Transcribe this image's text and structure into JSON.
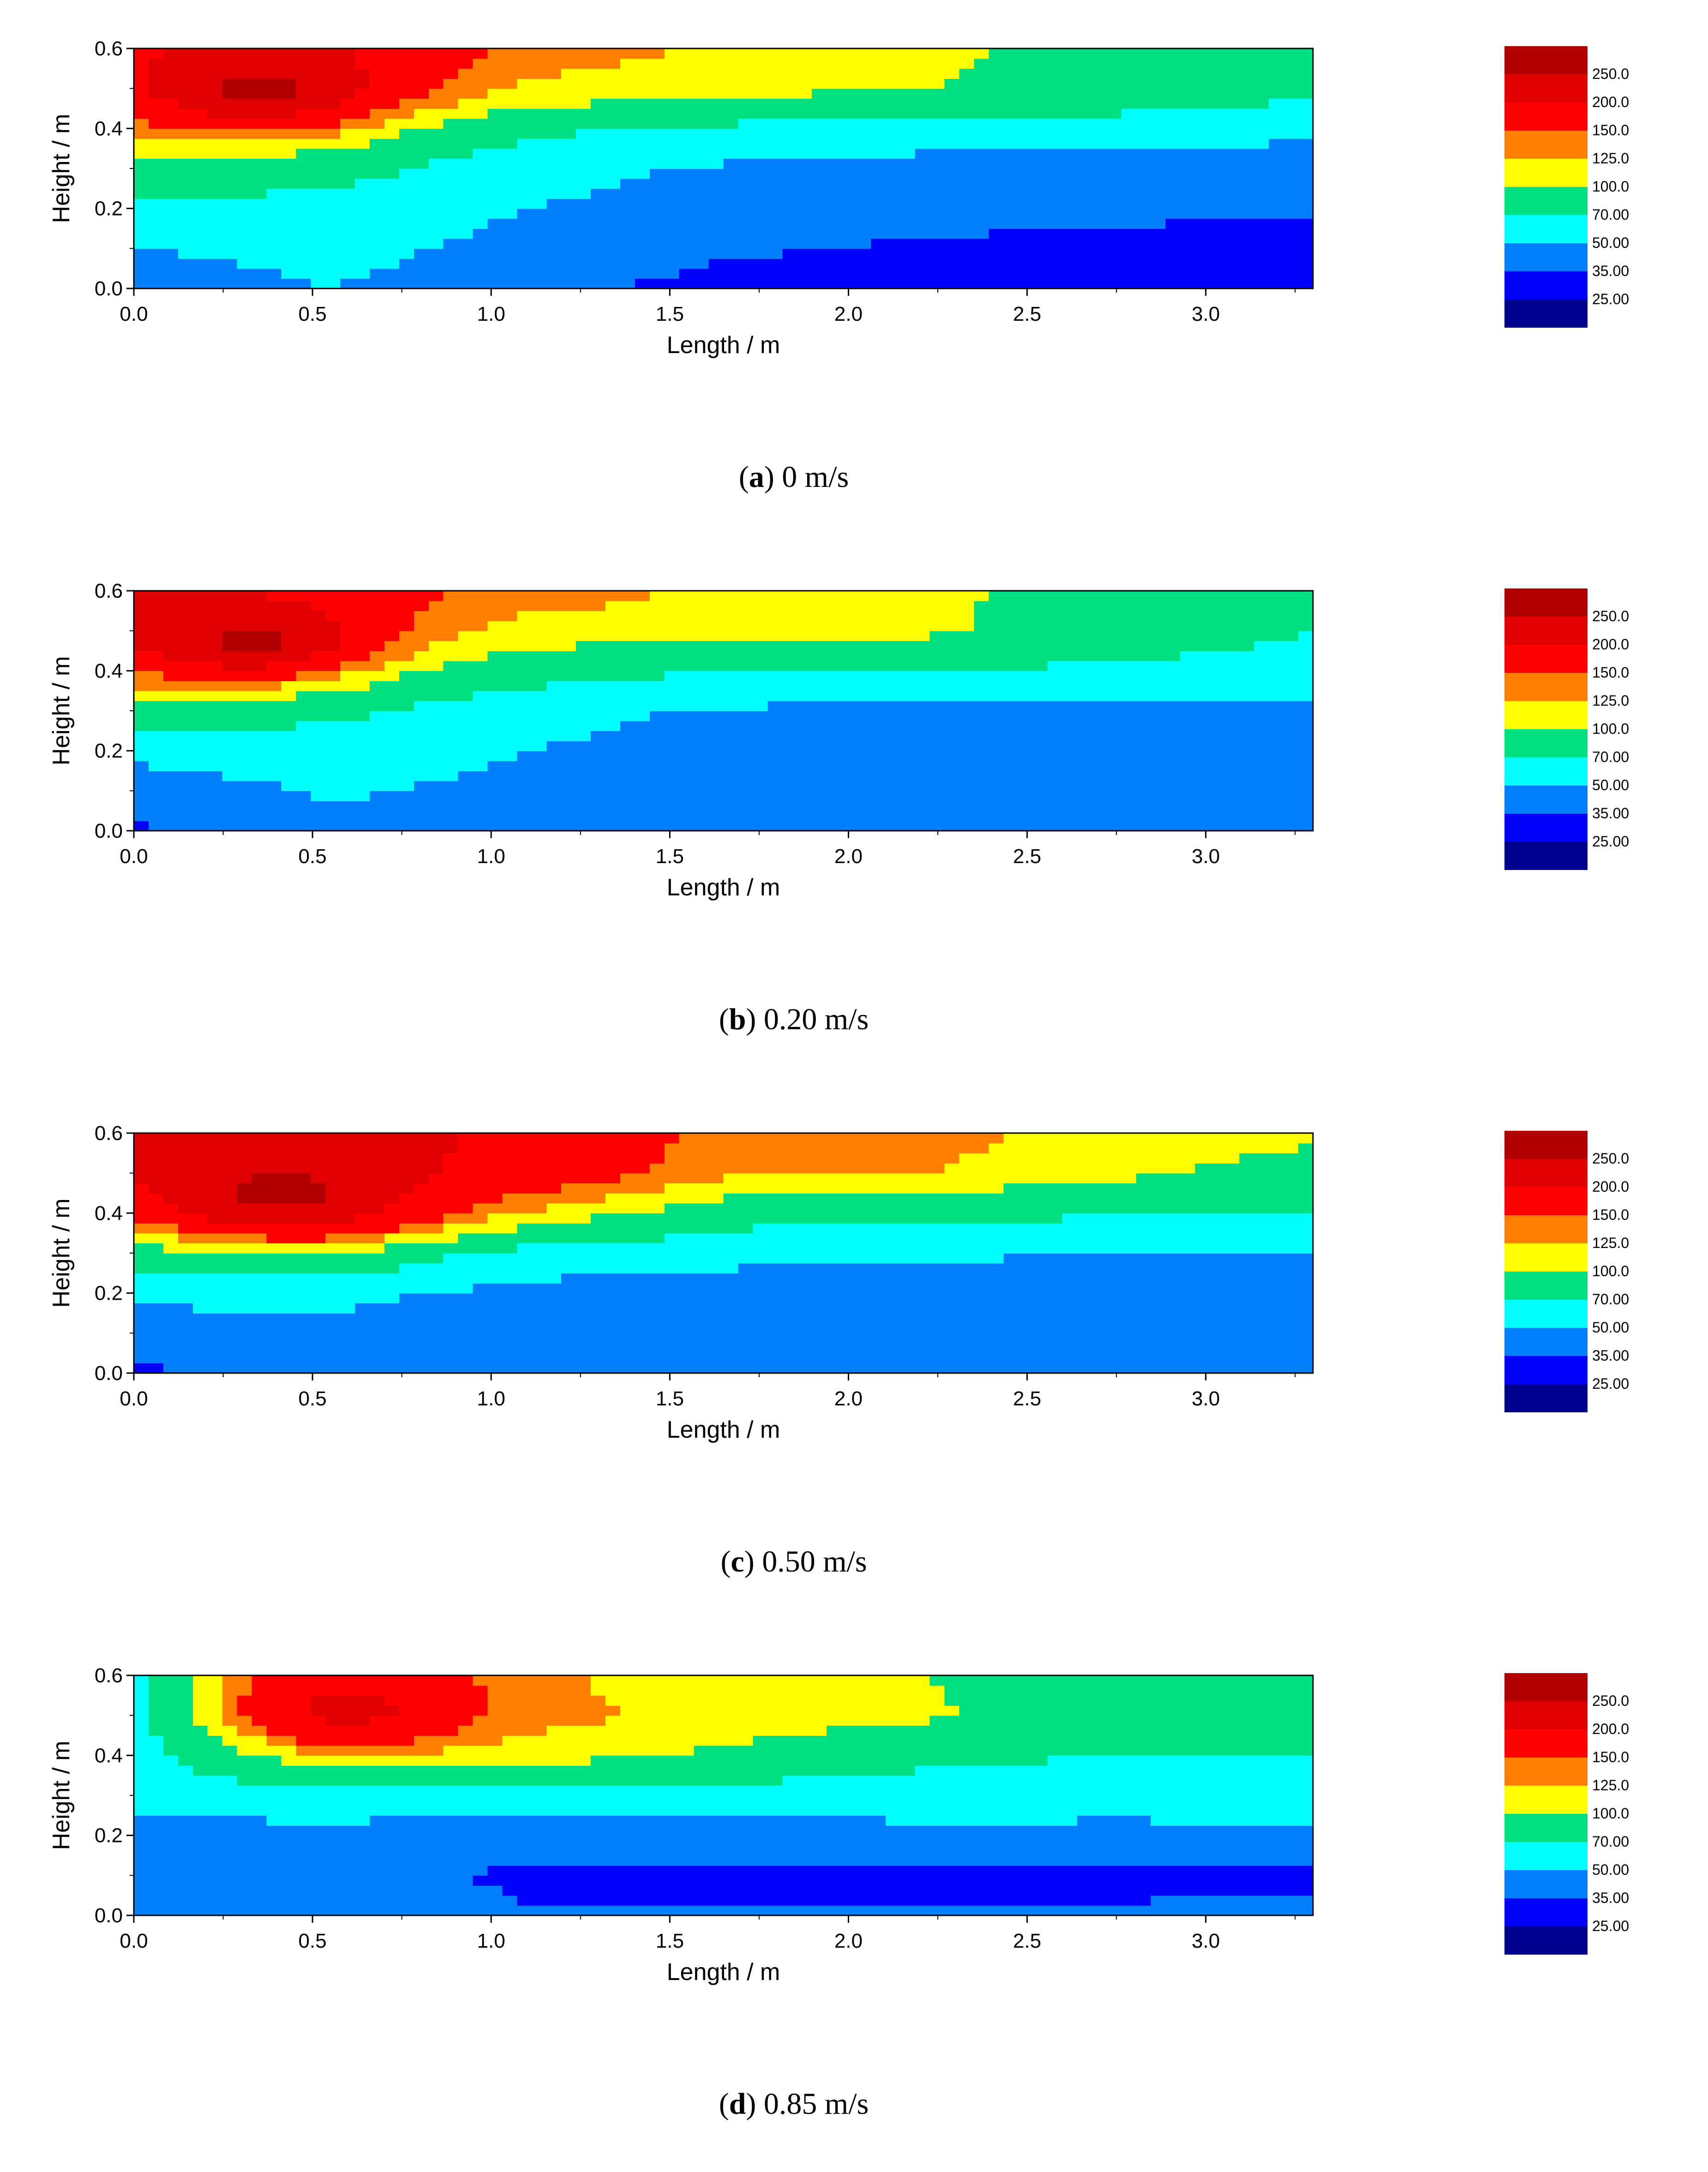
{
  "figure": {
    "panel_count": 4,
    "colorbar_colors": [
      "#00008f",
      "#0000ff",
      "#0080ff",
      "#00ffff",
      "#00e080",
      "#ffff00",
      "#ff8000",
      "#ff0000",
      "#e00000",
      "#b00000"
    ],
    "colorbar_labels": [
      "25.00",
      "35.00",
      "50.00",
      "70.00",
      "100.0",
      "125.0",
      "150.0",
      "200.0",
      "250.0"
    ]
  },
  "chart_data": [
    {
      "type": "contour",
      "panel_letter": "a",
      "caption": "0 m/s",
      "xlabel": "Length / m",
      "ylabel": "Height / m",
      "xlim": [
        0,
        3.3
      ],
      "ylim": [
        0,
        0.6
      ],
      "xticks": [
        "0.0",
        "0.5",
        "1.0",
        "1.5",
        "2.0",
        "2.5",
        "3.0"
      ],
      "yticks": [
        "0.0",
        "0.2",
        "0.4",
        "0.6"
      ],
      "x": [
        0,
        0.55,
        1.1,
        1.65,
        2.2,
        2.75,
        3.3
      ],
      "y": [
        0,
        0.1,
        0.2,
        0.3,
        0.4,
        0.5,
        0.6
      ],
      "z": [
        [
          40,
          50,
          40,
          30,
          28,
          27,
          26
        ],
        [
          50,
          55,
          45,
          37,
          33,
          31,
          30
        ],
        [
          65,
          60,
          50,
          45,
          40,
          38,
          36
        ],
        [
          90,
          80,
          55,
          48,
          44,
          42,
          40
        ],
        [
          130,
          110,
          75,
          65,
          60,
          58,
          55
        ],
        [
          170,
          170,
          120,
          110,
          100,
          90,
          75
        ],
        [
          190,
          200,
          140,
          120,
          110,
          80,
          70
        ]
      ],
      "hotspot": {
        "x": 0.35,
        "y": 0.5,
        "peak": 260
      },
      "levels": [
        25,
        35,
        50,
        70,
        100,
        125,
        150,
        200,
        250
      ]
    },
    {
      "type": "contour",
      "panel_letter": "b",
      "caption": "0.20 m/s",
      "xlabel": "Length / m",
      "ylabel": "Height / m",
      "xlim": [
        0,
        3.3
      ],
      "ylim": [
        0,
        0.6
      ],
      "xticks": [
        "0.0",
        "0.5",
        "1.0",
        "1.5",
        "2.0",
        "2.5",
        "3.0"
      ],
      "yticks": [
        "0.0",
        "0.2",
        "0.4",
        "0.6"
      ],
      "x": [
        0,
        0.55,
        1.1,
        1.65,
        2.2,
        2.75,
        3.3
      ],
      "y": [
        0,
        0.1,
        0.2,
        0.3,
        0.4,
        0.5,
        0.6
      ],
      "z": [
        [
          33,
          45,
          42,
          40,
          38,
          38,
          38
        ],
        [
          40,
          52,
          45,
          42,
          40,
          40,
          40
        ],
        [
          55,
          60,
          50,
          45,
          42,
          42,
          42
        ],
        [
          80,
          75,
          55,
          48,
          45,
          45,
          45
        ],
        [
          140,
          105,
          80,
          70,
          68,
          66,
          60
        ],
        [
          200,
          150,
          115,
          110,
          105,
          85,
          70
        ],
        [
          220,
          170,
          140,
          120,
          110,
          80,
          70
        ]
      ],
      "hotspot": {
        "x": 0.33,
        "y": 0.48,
        "peak": 260
      },
      "levels": [
        25,
        35,
        50,
        70,
        100,
        125,
        150,
        200,
        250
      ]
    },
    {
      "type": "contour",
      "panel_letter": "c",
      "caption": "0.50 m/s",
      "xlabel": "Length / m",
      "ylabel": "Height / m",
      "xlim": [
        0,
        3.3
      ],
      "ylim": [
        0,
        0.6
      ],
      "xticks": [
        "0.0",
        "0.5",
        "1.0",
        "1.5",
        "2.0",
        "2.5",
        "3.0"
      ],
      "yticks": [
        "0.0",
        "0.2",
        "0.4",
        "0.6"
      ],
      "x": [
        0,
        0.55,
        1.1,
        1.65,
        2.2,
        2.75,
        3.3
      ],
      "y": [
        0,
        0.1,
        0.2,
        0.3,
        0.4,
        0.5,
        0.6
      ],
      "z": [
        [
          33,
          40,
          40,
          38,
          38,
          38,
          40
        ],
        [
          40,
          45,
          36,
          36,
          37,
          36,
          42
        ],
        [
          55,
          55,
          45,
          42,
          42,
          42,
          45
        ],
        [
          85,
          90,
          60,
          55,
          52,
          50,
          50
        ],
        [
          150,
          190,
          120,
          80,
          75,
          72,
          70
        ],
        [
          200,
          220,
          180,
          130,
          125,
          105,
          90
        ],
        [
          230,
          220,
          190,
          140,
          140,
          110,
          105
        ]
      ],
      "hotspot": {
        "x": 0.4,
        "y": 0.45,
        "peak": 260
      },
      "levels": [
        25,
        35,
        50,
        70,
        100,
        125,
        150,
        200,
        250
      ]
    },
    {
      "type": "contour",
      "panel_letter": "d",
      "caption": "0.85 m/s",
      "xlabel": "Length / m",
      "ylabel": "Height / m",
      "xlim": [
        0,
        3.3
      ],
      "ylim": [
        0,
        0.6
      ],
      "xticks": [
        "0.0",
        "0.5",
        "1.0",
        "1.5",
        "2.0",
        "2.5",
        "3.0"
      ],
      "yticks": [
        "0.0",
        "0.2",
        "0.4",
        "0.6"
      ],
      "x": [
        0,
        0.55,
        1.1,
        1.65,
        2.2,
        2.75,
        3.3
      ],
      "y": [
        0,
        0.1,
        0.2,
        0.3,
        0.4,
        0.5,
        0.6
      ],
      "z": [
        [
          35,
          40,
          36,
          36,
          36,
          36,
          37
        ],
        [
          36,
          40,
          33,
          33,
          33,
          33,
          33
        ],
        [
          45,
          45,
          40,
          40,
          45,
          45,
          45
        ],
        [
          55,
          60,
          60,
          58,
          60,
          58,
          60
        ],
        [
          60,
          110,
          110,
          95,
          75,
          70,
          70
        ],
        [
          60,
          150,
          135,
          115,
          105,
          85,
          70
        ],
        [
          60,
          170,
          130,
          110,
          100,
          80,
          70
        ]
      ],
      "hotspot": {
        "x": 0.6,
        "y": 0.52,
        "peak": 210
      },
      "levels": [
        25,
        35,
        50,
        70,
        100,
        125,
        150,
        200,
        250
      ]
    }
  ]
}
